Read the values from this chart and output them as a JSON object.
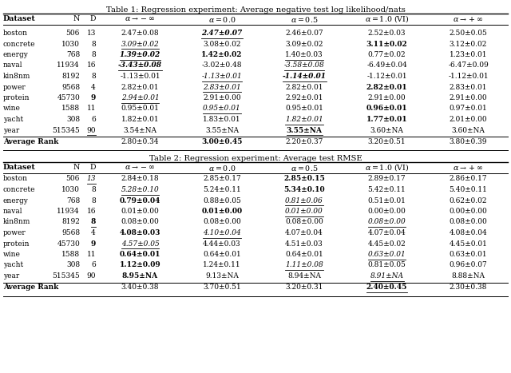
{
  "table1_title": "Table 1: Regression experiment: Average negative test log likelihood/nats",
  "table2_title": "Table 2: Regression experiment: Average test RMSE",
  "table1_rows": [
    [
      "boston",
      "506",
      "13",
      "2.47±0.08",
      "2.47±0.07",
      "2.46±0.07",
      "2.52±0.03",
      "2.50±0.05"
    ],
    [
      "concrete",
      "1030",
      "8",
      "3.09±0.02",
      "3.08±0.02",
      "3.09±0.02",
      "3.11±0.02",
      "3.12±0.02"
    ],
    [
      "energy",
      "768",
      "8",
      "1.39±0.02",
      "1.42±0.02",
      "1.40±0.03",
      "0.77±0.02",
      "1.23±0.01"
    ],
    [
      "naval",
      "11934",
      "16",
      "-3.43±0.08",
      "-3.02±0.48",
      "-3.58±0.08",
      "-6.49±0.04",
      "-6.47±0.09"
    ],
    [
      "kin8nm",
      "8192",
      "8",
      "-1.13±0.01",
      "-1.13±0.01",
      "-1.14±0.01",
      "-1.12±0.01",
      "-1.12±0.01"
    ],
    [
      "power",
      "9568",
      "4",
      "2.82±0.01",
      "2.83±0.01",
      "2.82±0.01",
      "2.82±0.01",
      "2.83±0.01"
    ],
    [
      "protein",
      "45730",
      "9",
      "2.94±0.01",
      "2.91±0.00",
      "2.92±0.01",
      "2.91±0.00",
      "2.91±0.00"
    ],
    [
      "wine",
      "1588",
      "11",
      "0.95±0.01",
      "0.95±0.01",
      "0.95±0.01",
      "0.96±0.01",
      "0.97±0.01"
    ],
    [
      "yacht",
      "308",
      "6",
      "1.82±0.01",
      "1.83±0.01",
      "1.82±0.01",
      "1.77±0.01",
      "2.01±0.00"
    ],
    [
      "year",
      "515345",
      "90",
      "3.54±NA",
      "3.55±NA",
      "3.55±NA",
      "3.60±NA",
      "3.60±NA"
    ]
  ],
  "table1_avg": [
    "2.80±0.34",
    "3.00±0.45",
    "2.20±0.37",
    "3.20±0.51",
    "3.80±0.39"
  ],
  "table2_rows": [
    [
      "boston",
      "506",
      "13",
      "2.84±0.18",
      "2.85±0.17",
      "2.85±0.15",
      "2.89±0.17",
      "2.86±0.17"
    ],
    [
      "concrete",
      "1030",
      "8",
      "5.28±0.10",
      "5.24±0.11",
      "5.34±0.10",
      "5.42±0.11",
      "5.40±0.11"
    ],
    [
      "energy",
      "768",
      "8",
      "0.79±0.04",
      "0.88±0.05",
      "0.81±0.06",
      "0.51±0.01",
      "0.62±0.02"
    ],
    [
      "naval",
      "11934",
      "16",
      "0.01±0.00",
      "0.01±0.00",
      "0.01±0.00",
      "0.00±0.00",
      "0.00±0.00"
    ],
    [
      "kin8nm",
      "8192",
      "8",
      "0.08±0.00",
      "0.08±0.00",
      "0.08±0.00",
      "0.08±0.00",
      "0.08±0.00"
    ],
    [
      "power",
      "9568",
      "4",
      "4.08±0.03",
      "4.10±0.04",
      "4.07±0.04",
      "4.07±0.04",
      "4.08±0.04"
    ],
    [
      "protein",
      "45730",
      "9",
      "4.57±0.05",
      "4.44±0.03",
      "4.51±0.03",
      "4.45±0.02",
      "4.45±0.01"
    ],
    [
      "wine",
      "1588",
      "11",
      "0.64±0.01",
      "0.64±0.01",
      "0.64±0.01",
      "0.63±0.01",
      "0.63±0.01"
    ],
    [
      "yacht",
      "308",
      "6",
      "1.12±0.09",
      "1.24±0.11",
      "1.11±0.08",
      "0.81±0.05",
      "0.96±0.07"
    ],
    [
      "year",
      "515345",
      "90",
      "8.95±NA",
      "9.13±NA",
      "8.94±NA",
      "8.91±NA",
      "8.88±NA"
    ]
  ],
  "table2_avg": [
    "3.40±0.38",
    "3.70±0.51",
    "3.20±0.31",
    "2.40±0.45",
    "2.30±0.38"
  ],
  "t1_bold": {
    "boston": [
      5
    ],
    "concrete": [
      7
    ],
    "energy": [
      4,
      5
    ],
    "naval": [
      4
    ],
    "kin8nm": [
      6
    ],
    "power": [
      7
    ],
    "protein": [
      3
    ],
    "wine": [
      7
    ],
    "yacht": [
      7
    ],
    "year": [
      6
    ]
  },
  "t1_italic": {
    "boston": [
      5
    ],
    "concrete": [
      4
    ],
    "energy": [
      4
    ],
    "naval": [
      4,
      6
    ],
    "kin8nm": [
      5,
      6
    ],
    "power": [
      5
    ],
    "protein": [
      4
    ],
    "wine": [
      5
    ],
    "yacht": [
      6
    ],
    "year": []
  },
  "t1_underline": {
    "boston": [
      5
    ],
    "concrete": [
      4
    ],
    "energy": [
      4,
      6
    ],
    "naval": [
      4,
      6
    ],
    "kin8nm": [
      5,
      6
    ],
    "power": [
      5
    ],
    "protein": [
      4
    ],
    "wine": [
      5
    ],
    "yacht": [
      6
    ],
    "year": [
      3,
      6
    ]
  },
  "t1_avg_bold": [
    5
  ],
  "t1_avg_italic": [],
  "t1_avg_underline": [],
  "t2_bold": {
    "boston": [
      6
    ],
    "concrete": [
      6
    ],
    "energy": [
      4
    ],
    "naval": [
      5
    ],
    "kin8nm": [
      3
    ],
    "power": [
      4
    ],
    "protein": [
      3
    ],
    "wine": [
      4
    ],
    "yacht": [
      4
    ],
    "year": [
      4
    ]
  },
  "t2_italic": {
    "boston": [
      3
    ],
    "concrete": [
      4
    ],
    "energy": [
      6
    ],
    "naval": [
      6
    ],
    "kin8nm": [
      7
    ],
    "power": [
      5
    ],
    "protein": [
      4
    ],
    "wine": [
      7
    ],
    "yacht": [
      6
    ],
    "year": [
      7
    ]
  },
  "t2_underline": {
    "boston": [
      3
    ],
    "concrete": [
      4
    ],
    "energy": [
      6
    ],
    "naval": [
      6
    ],
    "kin8nm": [
      3,
      7
    ],
    "power": [
      5
    ],
    "protein": [
      4
    ],
    "wine": [
      7
    ],
    "yacht": [
      6
    ],
    "year": [
      7
    ]
  },
  "t2_avg_bold": [
    7
  ],
  "t2_avg_italic": [],
  "t2_avg_underline": [
    7
  ]
}
